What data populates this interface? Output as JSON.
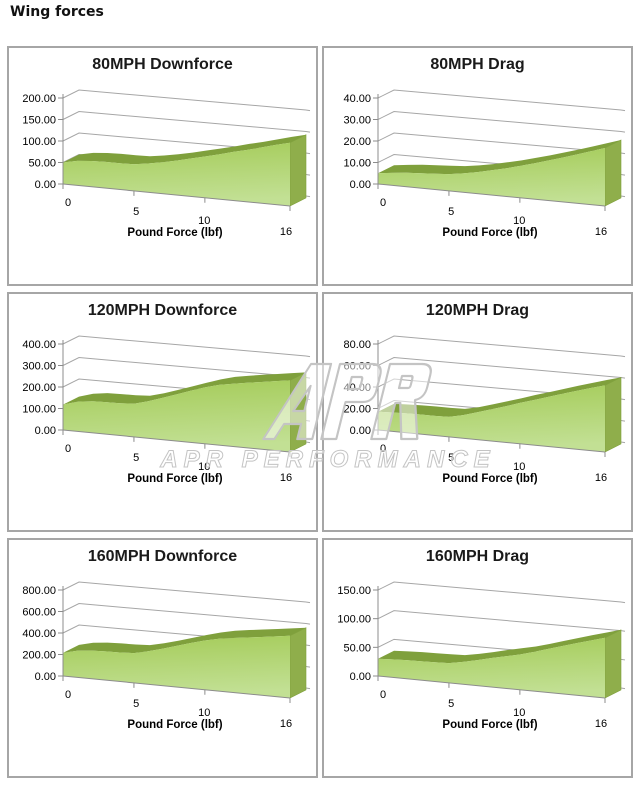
{
  "page_title": "Wing forces",
  "watermark": {
    "logo": "APR",
    "text": "APR PERFORMANCE"
  },
  "x_axis": {
    "label": "Pound Force (lbf)",
    "tick_labels": [
      "0",
      "5",
      "10",
      "16"
    ],
    "tick_values": [
      0,
      5,
      10,
      16
    ],
    "max": 16
  },
  "colors": {
    "grid": "#a6a6a6",
    "axis": "#8c8c8c",
    "panel_border": "#a6a6a6",
    "area_fill_top": "#a4cb58",
    "area_fill_bottom": "#c2e094",
    "area_top_edge": "#7fa03c",
    "area_right_cap": "#8fae4b",
    "label_text": "#000000",
    "title_text": "#1a1a1a",
    "watermark_stroke": "#c4c4c4"
  },
  "chart_data": [
    {
      "type": "area",
      "title": "80MPH Downforce",
      "xlabel": "Pound Force (lbf)",
      "ylabel": "",
      "ylim": [
        0,
        200
      ],
      "ytick_labels": [
        "0.00",
        "50.00",
        "100.00",
        "150.00",
        "200.00"
      ],
      "x": [
        0,
        1,
        2,
        3,
        4,
        5,
        6,
        7,
        8,
        9,
        10,
        11,
        12,
        13,
        14,
        15,
        16
      ],
      "values": [
        50,
        57,
        60,
        61,
        61,
        62,
        67,
        73,
        80,
        88,
        96,
        104,
        113,
        121,
        130,
        139,
        147
      ]
    },
    {
      "type": "area",
      "title": "80MPH Drag",
      "xlabel": "Pound Force (lbf)",
      "ylabel": "",
      "ylim": [
        0,
        40
      ],
      "ytick_labels": [
        "0.00",
        "10.00",
        "20.00",
        "30.00",
        "40.00"
      ],
      "x": [
        0,
        1,
        2,
        3,
        4,
        5,
        6,
        7,
        8,
        9,
        10,
        11,
        12,
        13,
        14,
        15,
        16
      ],
      "values": [
        5,
        5.8,
        6.5,
        6.9,
        7.3,
        7.8,
        8.8,
        10,
        11.5,
        13,
        14.8,
        16.6,
        18.6,
        20.6,
        22.7,
        24.8,
        27
      ]
    },
    {
      "type": "area",
      "title": "120MPH Downforce",
      "xlabel": "Pound Force (lbf)",
      "ylabel": "",
      "ylim": [
        0,
        400
      ],
      "ytick_labels": [
        "0.00",
        "100.00",
        "200.00",
        "300.00",
        "400.00"
      ],
      "x": [
        0,
        1,
        2,
        3,
        4,
        5,
        6,
        7,
        8,
        9,
        10,
        11,
        12,
        13,
        14,
        15,
        16
      ],
      "values": [
        118,
        138,
        147,
        149,
        150,
        154,
        172,
        194,
        217,
        240,
        262,
        280,
        292,
        303,
        313,
        323,
        333
      ]
    },
    {
      "type": "area",
      "title": "120MPH Drag",
      "xlabel": "Pound Force (lbf)",
      "ylabel": "",
      "ylim": [
        0,
        80
      ],
      "ytick_labels": [
        "0.00",
        "20.00",
        "40.00",
        "60.00",
        "80.00"
      ],
      "x": [
        0,
        1,
        2,
        3,
        4,
        5,
        6,
        7,
        8,
        9,
        10,
        11,
        12,
        13,
        14,
        15,
        16
      ],
      "values": [
        17,
        17.6,
        18,
        18.2,
        18.3,
        18.6,
        21.5,
        25.5,
        29.5,
        33.6,
        38,
        42,
        46.2,
        50.3,
        54.3,
        58.2,
        62
      ]
    },
    {
      "type": "area",
      "title": "160MPH Downforce",
      "xlabel": "Pound Force (lbf)",
      "ylabel": "",
      "ylim": [
        0,
        800
      ],
      "ytick_labels": [
        "0.00",
        "200.00",
        "400.00",
        "600.00",
        "800.00"
      ],
      "x": [
        0,
        1,
        2,
        3,
        4,
        5,
        6,
        7,
        8,
        9,
        10,
        11,
        12,
        13,
        14,
        15,
        16
      ],
      "values": [
        215,
        248,
        262,
        267,
        270,
        277,
        307,
        343,
        382,
        422,
        458,
        487,
        507,
        524,
        542,
        560,
        579
      ]
    },
    {
      "type": "area",
      "title": "160MPH Drag",
      "xlabel": "Pound Force (lbf)",
      "ylabel": "",
      "ylim": [
        0,
        150
      ],
      "ytick_labels": [
        "0.00",
        "50.00",
        "100.00",
        "150.00"
      ],
      "x": [
        0,
        1,
        2,
        3,
        4,
        5,
        6,
        7,
        8,
        9,
        10,
        11,
        12,
        13,
        14,
        15,
        16
      ],
      "values": [
        30,
        31.5,
        32.5,
        33,
        33.5,
        34.5,
        39,
        44.5,
        50.5,
        56,
        61.5,
        68.5,
        76,
        83.5,
        91,
        98,
        105
      ]
    }
  ]
}
